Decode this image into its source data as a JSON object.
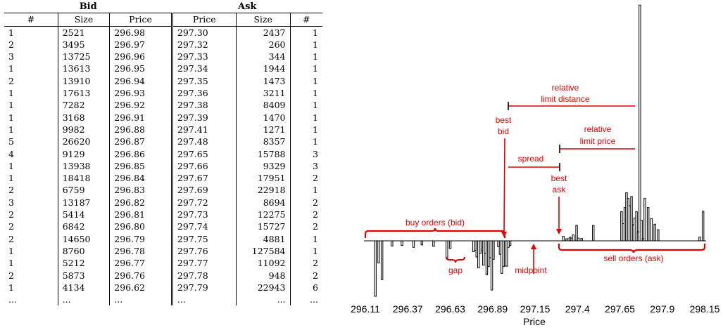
{
  "table": {
    "bid_header": "Bid",
    "ask_header": "Ask",
    "columns": [
      "#",
      "Size",
      "Price",
      "Price",
      "Size",
      "#"
    ],
    "rows": [
      [
        "1",
        "2521",
        "296.98",
        "297.30",
        "2437",
        "1"
      ],
      [
        "2",
        "3495",
        "296.97",
        "297.32",
        "260",
        "1"
      ],
      [
        "3",
        "13725",
        "296.96",
        "297.33",
        "344",
        "1"
      ],
      [
        "1",
        "13613",
        "296.95",
        "297.34",
        "1944",
        "1"
      ],
      [
        "2",
        "13910",
        "296.94",
        "297.35",
        "1473",
        "1"
      ],
      [
        "1",
        "17613",
        "296.93",
        "297.36",
        "3211",
        "1"
      ],
      [
        "1",
        "7282",
        "296.92",
        "297.38",
        "8409",
        "1"
      ],
      [
        "1",
        "3168",
        "296.91",
        "297.39",
        "1470",
        "1"
      ],
      [
        "1",
        "9982",
        "296.88",
        "297.41",
        "1271",
        "1"
      ],
      [
        "5",
        "26620",
        "296.87",
        "297.48",
        "8357",
        "1"
      ],
      [
        "4",
        "9129",
        "296.86",
        "297.65",
        "15788",
        "3"
      ],
      [
        "1",
        "13938",
        "296.85",
        "297.66",
        "9329",
        "3"
      ],
      [
        "1",
        "18418",
        "296.84",
        "297.67",
        "17951",
        "2"
      ],
      [
        "2",
        "6759",
        "296.83",
        "297.69",
        "22918",
        "1"
      ],
      [
        "3",
        "13187",
        "296.82",
        "297.72",
        "8694",
        "2"
      ],
      [
        "2",
        "5414",
        "296.81",
        "297.73",
        "12275",
        "2"
      ],
      [
        "2",
        "6842",
        "296.80",
        "297.74",
        "15727",
        "2"
      ],
      [
        "2",
        "14650",
        "296.79",
        "297.75",
        "4881",
        "1"
      ],
      [
        "1",
        "8760",
        "296.78",
        "297.76",
        "127584",
        "1"
      ],
      [
        "1",
        "5212",
        "296.77",
        "297.77",
        "11092",
        "2"
      ],
      [
        "2",
        "5873",
        "296.76",
        "297.78",
        "948",
        "2"
      ],
      [
        "1",
        "4134",
        "296.62",
        "297.79",
        "22943",
        "6"
      ],
      [
        "...",
        "...",
        "...",
        "...",
        "...",
        "..."
      ]
    ]
  },
  "diagram": {
    "ticks": [
      "296.11",
      "296.37",
      "296.63",
      "296.89",
      "297.15",
      "297.4",
      "297.65",
      "297.9",
      "298.15"
    ],
    "xlabel": "Price",
    "labels": {
      "relative_limit_distance": [
        "relative",
        "limit distance"
      ],
      "best_bid": [
        "best",
        "bid"
      ],
      "relative_limit_price": [
        "relative",
        "limit price"
      ],
      "spread": "spread",
      "best_ask": [
        "best",
        "ask"
      ],
      "buy_orders": "buy orders (bid)",
      "sell_orders": "sell orders (ask)",
      "gap": "gap",
      "midpoint": "midpoint"
    },
    "colors": {
      "annotation": "#e00000",
      "bars": "#000000"
    },
    "bid_bars": [
      {
        "price": 296.98,
        "size": 2521
      },
      {
        "price": 296.97,
        "size": 3495
      },
      {
        "price": 296.96,
        "size": 13725
      },
      {
        "price": 296.95,
        "size": 13613
      },
      {
        "price": 296.94,
        "size": 13910
      },
      {
        "price": 296.93,
        "size": 17613
      },
      {
        "price": 296.92,
        "size": 7282
      },
      {
        "price": 296.91,
        "size": 3168
      },
      {
        "price": 296.88,
        "size": 9982
      },
      {
        "price": 296.87,
        "size": 26620
      },
      {
        "price": 296.86,
        "size": 9129
      },
      {
        "price": 296.85,
        "size": 13938
      },
      {
        "price": 296.84,
        "size": 18418
      },
      {
        "price": 296.83,
        "size": 6759
      },
      {
        "price": 296.82,
        "size": 13187
      },
      {
        "price": 296.81,
        "size": 5414
      },
      {
        "price": 296.8,
        "size": 6842
      },
      {
        "price": 296.79,
        "size": 14650
      },
      {
        "price": 296.78,
        "size": 8760
      },
      {
        "price": 296.77,
        "size": 5212
      },
      {
        "price": 296.76,
        "size": 5873
      },
      {
        "price": 296.62,
        "size": 4134
      },
      {
        "price": 296.6,
        "size": 9500
      },
      {
        "price": 296.52,
        "size": 3000
      },
      {
        "price": 296.45,
        "size": 2200
      },
      {
        "price": 296.4,
        "size": 3500
      },
      {
        "price": 296.33,
        "size": 2500
      },
      {
        "price": 296.27,
        "size": 2800
      },
      {
        "price": 296.21,
        "size": 21000
      },
      {
        "price": 296.19,
        "size": 12000
      },
      {
        "price": 296.17,
        "size": 30000
      }
    ],
    "ask_bars": [
      {
        "price": 297.3,
        "size": 2437
      },
      {
        "price": 297.32,
        "size": 260
      },
      {
        "price": 297.33,
        "size": 344
      },
      {
        "price": 297.34,
        "size": 1944
      },
      {
        "price": 297.35,
        "size": 1473
      },
      {
        "price": 297.36,
        "size": 3211
      },
      {
        "price": 297.38,
        "size": 8409
      },
      {
        "price": 297.39,
        "size": 1470
      },
      {
        "price": 297.41,
        "size": 1271
      },
      {
        "price": 297.48,
        "size": 8357
      },
      {
        "price": 297.65,
        "size": 15788
      },
      {
        "price": 297.66,
        "size": 9329
      },
      {
        "price": 297.67,
        "size": 17951
      },
      {
        "price": 297.69,
        "size": 22918
      },
      {
        "price": 297.72,
        "size": 8694
      },
      {
        "price": 297.73,
        "size": 12275
      },
      {
        "price": 297.74,
        "size": 15727
      },
      {
        "price": 297.75,
        "size": 4881
      },
      {
        "price": 297.76,
        "size": 127584
      },
      {
        "price": 297.77,
        "size": 11092
      },
      {
        "price": 297.78,
        "size": 948
      },
      {
        "price": 297.79,
        "size": 22943
      },
      {
        "price": 297.68,
        "size": 26000
      },
      {
        "price": 297.7,
        "size": 19000
      },
      {
        "price": 297.71,
        "size": 24000
      },
      {
        "price": 297.81,
        "size": 18000
      },
      {
        "price": 297.83,
        "size": 12000
      },
      {
        "price": 297.85,
        "size": 9000
      },
      {
        "price": 297.87,
        "size": 6000
      },
      {
        "price": 298.12,
        "size": 2000
      },
      {
        "price": 298.14,
        "size": 16000
      }
    ]
  }
}
